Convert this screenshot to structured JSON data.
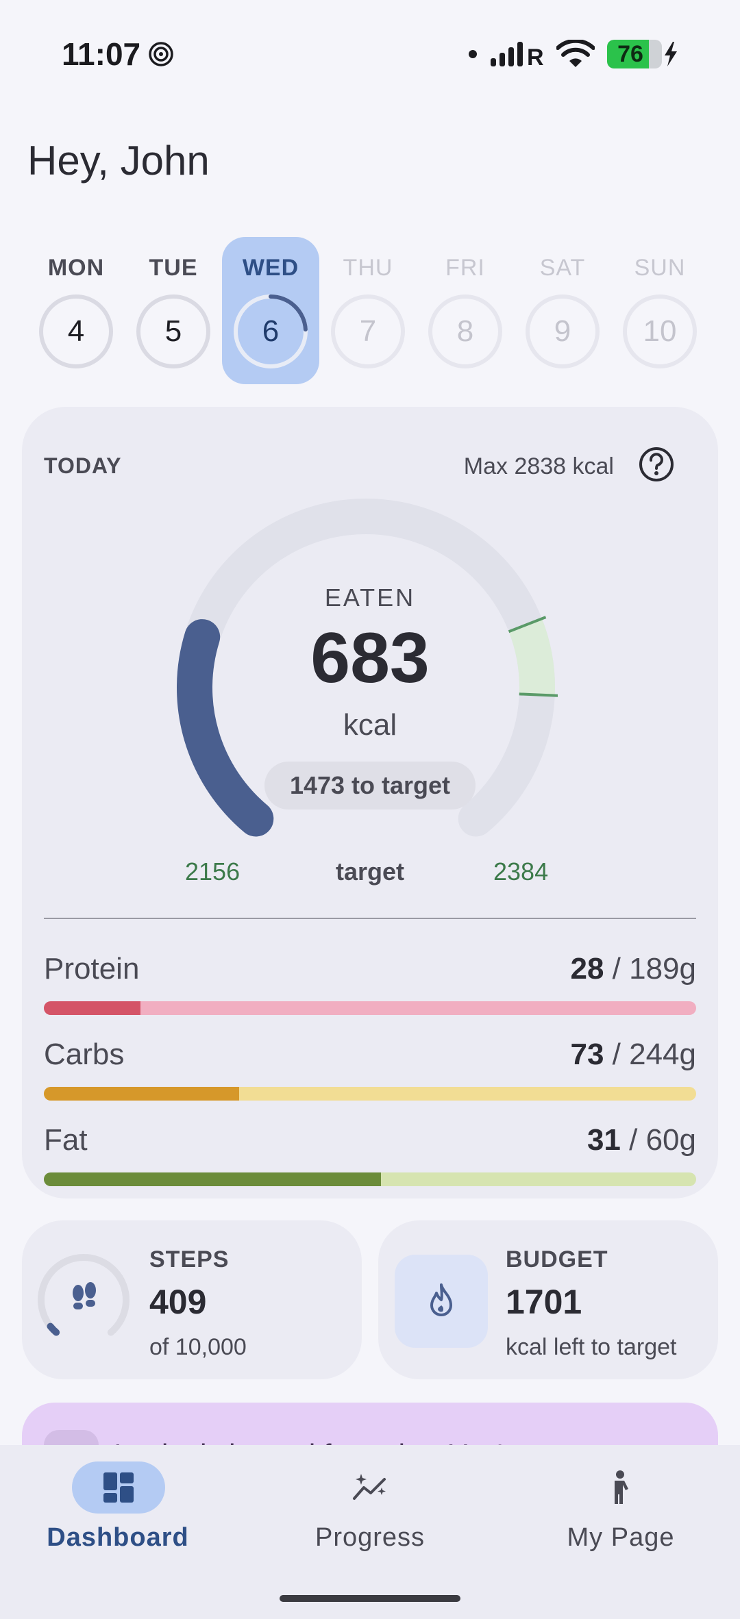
{
  "status_bar": {
    "time": "11:07",
    "battery_level": "76",
    "battery_fraction": 0.76,
    "network_label": "R"
  },
  "greeting": "Hey, John",
  "week": {
    "days": [
      {
        "label": "MON",
        "num": "4",
        "state": "past",
        "progress": 0
      },
      {
        "label": "TUE",
        "num": "5",
        "state": "past",
        "progress": 0
      },
      {
        "label": "WED",
        "num": "6",
        "state": "active",
        "progress": 0.24
      },
      {
        "label": "THU",
        "num": "7",
        "state": "future",
        "progress": 0
      },
      {
        "label": "FRI",
        "num": "8",
        "state": "future",
        "progress": 0
      },
      {
        "label": "SAT",
        "num": "9",
        "state": "future",
        "progress": 0
      },
      {
        "label": "SUN",
        "num": "10",
        "state": "future",
        "progress": 0
      }
    ]
  },
  "today": {
    "label": "TODAY",
    "max_label": "Max 2838 kcal",
    "eaten_label": "EATEN",
    "eaten_value": "683",
    "unit": "kcal",
    "to_target": "1473 to target",
    "range_low": "2156",
    "range_mid": "target",
    "range_high": "2384",
    "gauge_progress": 0.24,
    "colors": {
      "arc": "#4a5f8f",
      "track": "#e0e1ea",
      "target_zone": "#dcecd9",
      "target_marker": "#5a9a68"
    }
  },
  "macros": [
    {
      "name": "Protein",
      "value": "28",
      "total": " / 189g",
      "fraction": 0.148,
      "fill": "#d45467",
      "track": "#f1aec1"
    },
    {
      "name": "Carbs",
      "value": "73",
      "total": " / 244g",
      "fraction": 0.299,
      "fill": "#d6982a",
      "track": "#f2dd94"
    },
    {
      "name": "Fat",
      "value": "31",
      "total": " / 60g",
      "fraction": 0.517,
      "fill": "#6b8c3a",
      "track": "#d6e4b0"
    }
  ],
  "steps": {
    "title": "STEPS",
    "value": "409",
    "sub": "of 10,000",
    "fraction": 0.041
  },
  "budget": {
    "title": "BUDGET",
    "value": "1701",
    "sub": "kcal left to target"
  },
  "banner": {
    "text": "Intake is logged for today. You're"
  },
  "nav": {
    "items": [
      {
        "label": "Dashboard",
        "icon": "dashboard-icon",
        "active": true
      },
      {
        "label": "Progress",
        "icon": "progress-sparkle-icon",
        "active": false
      },
      {
        "label": "My Page",
        "icon": "person-icon",
        "active": false
      }
    ]
  }
}
